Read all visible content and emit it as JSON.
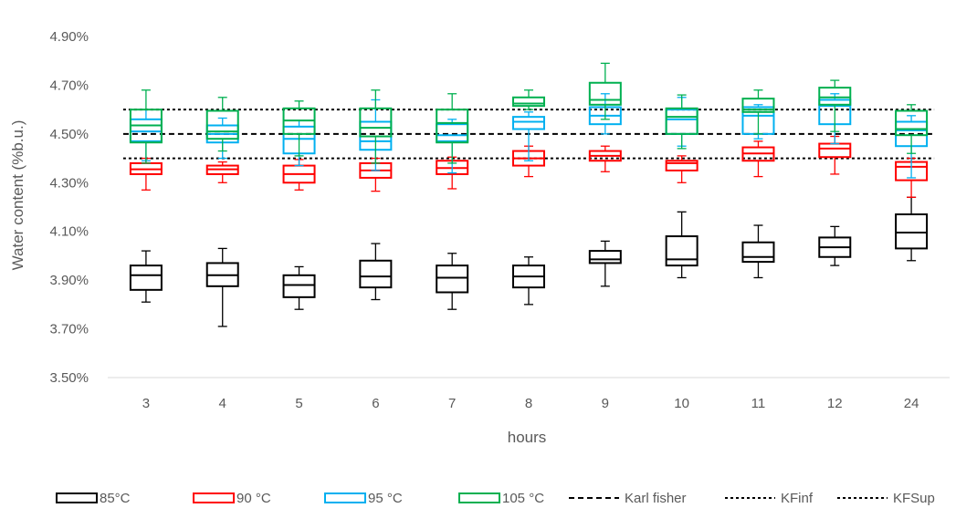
{
  "chart_data": {
    "type": "box",
    "xlabel": "hours",
    "ylabel": "Water content (%b.u.)",
    "ylim": [
      3.5,
      4.95
    ],
    "yticks": [
      "3.50%",
      "3.70%",
      "3.90%",
      "4.10%",
      "4.30%",
      "4.50%",
      "4.70%",
      "4.90%"
    ],
    "ytick_values": [
      3.5,
      3.7,
      3.9,
      4.1,
      4.3,
      4.5,
      4.7,
      4.9
    ],
    "categories": [
      "3",
      "4",
      "5",
      "6",
      "7",
      "8",
      "9",
      "10",
      "11",
      "12",
      "24"
    ],
    "grid": false,
    "legend_position": "bottom",
    "series": [
      {
        "name": "85°C",
        "color": "#000000",
        "boxes": [
          {
            "min": 3.81,
            "q1": 3.86,
            "median": 3.92,
            "q3": 3.96,
            "max": 4.02
          },
          {
            "min": 3.71,
            "q1": 3.875,
            "median": 3.92,
            "q3": 3.97,
            "max": 4.03
          },
          {
            "min": 3.78,
            "q1": 3.83,
            "median": 3.88,
            "q3": 3.92,
            "max": 3.955
          },
          {
            "min": 3.82,
            "q1": 3.87,
            "median": 3.915,
            "q3": 3.98,
            "max": 4.05
          },
          {
            "min": 3.78,
            "q1": 3.85,
            "median": 3.91,
            "q3": 3.96,
            "max": 4.01
          },
          {
            "min": 3.8,
            "q1": 3.87,
            "median": 3.915,
            "q3": 3.96,
            "max": 3.995
          },
          {
            "min": 3.875,
            "q1": 3.97,
            "median": 3.985,
            "q3": 4.02,
            "max": 4.06
          },
          {
            "min": 3.91,
            "q1": 3.96,
            "median": 3.985,
            "q3": 4.08,
            "max": 4.18
          },
          {
            "min": 3.91,
            "q1": 3.975,
            "median": 3.995,
            "q3": 4.055,
            "max": 4.125
          },
          {
            "min": 3.96,
            "q1": 3.995,
            "median": 4.035,
            "q3": 4.075,
            "max": 4.12
          },
          {
            "min": 3.98,
            "q1": 4.03,
            "median": 4.095,
            "q3": 4.17,
            "max": 4.24
          }
        ]
      },
      {
        "name": "90 °C",
        "color": "#ff0000",
        "boxes": [
          {
            "min": 4.27,
            "q1": 4.335,
            "median": 4.355,
            "q3": 4.38,
            "max": 4.4
          },
          {
            "min": 4.3,
            "q1": 4.335,
            "median": 4.355,
            "q3": 4.37,
            "max": 4.385
          },
          {
            "min": 4.27,
            "q1": 4.3,
            "median": 4.335,
            "q3": 4.37,
            "max": 4.395
          },
          {
            "min": 4.265,
            "q1": 4.32,
            "median": 4.35,
            "q3": 4.38,
            "max": 4.4
          },
          {
            "min": 4.275,
            "q1": 4.335,
            "median": 4.36,
            "q3": 4.39,
            "max": 4.405
          },
          {
            "min": 4.325,
            "q1": 4.37,
            "median": 4.4,
            "q3": 4.43,
            "max": 4.45
          },
          {
            "min": 4.345,
            "q1": 4.39,
            "median": 4.41,
            "q3": 4.43,
            "max": 4.45
          },
          {
            "min": 4.3,
            "q1": 4.35,
            "median": 4.38,
            "q3": 4.39,
            "max": 4.41
          },
          {
            "min": 4.325,
            "q1": 4.39,
            "median": 4.42,
            "q3": 4.445,
            "max": 4.47
          },
          {
            "min": 4.335,
            "q1": 4.405,
            "median": 4.44,
            "q3": 4.46,
            "max": 4.49
          },
          {
            "min": 4.24,
            "q1": 4.31,
            "median": 4.365,
            "q3": 4.385,
            "max": 4.4
          }
        ]
      },
      {
        "name": "95 °C",
        "color": "#00b0f0",
        "boxes": [
          {
            "min": 4.39,
            "q1": 4.47,
            "median": 4.51,
            "q3": 4.56,
            "max": 4.6
          },
          {
            "min": 4.4,
            "q1": 4.465,
            "median": 4.5,
            "q3": 4.535,
            "max": 4.565
          },
          {
            "min": 4.37,
            "q1": 4.42,
            "median": 4.48,
            "q3": 4.53,
            "max": 4.555
          },
          {
            "min": 4.35,
            "q1": 4.435,
            "median": 4.47,
            "q3": 4.55,
            "max": 4.64
          },
          {
            "min": 4.34,
            "q1": 4.47,
            "median": 4.495,
            "q3": 4.54,
            "max": 4.56
          },
          {
            "min": 4.39,
            "q1": 4.52,
            "median": 4.55,
            "q3": 4.57,
            "max": 4.59
          },
          {
            "min": 4.5,
            "q1": 4.54,
            "median": 4.575,
            "q3": 4.61,
            "max": 4.665
          },
          {
            "min": 4.45,
            "q1": 4.5,
            "median": 4.56,
            "q3": 4.6,
            "max": 4.65
          },
          {
            "min": 4.48,
            "q1": 4.5,
            "median": 4.575,
            "q3": 4.61,
            "max": 4.62
          },
          {
            "min": 4.46,
            "q1": 4.54,
            "median": 4.615,
            "q3": 4.64,
            "max": 4.665
          },
          {
            "min": 4.32,
            "q1": 4.45,
            "median": 4.515,
            "q3": 4.55,
            "max": 4.575
          }
        ]
      },
      {
        "name": "105 °C",
        "color": "#00b050",
        "boxes": [
          {
            "min": 4.38,
            "q1": 4.465,
            "median": 4.535,
            "q3": 4.6,
            "max": 4.68
          },
          {
            "min": 4.43,
            "q1": 4.48,
            "median": 4.51,
            "q3": 4.595,
            "max": 4.65
          },
          {
            "min": 4.41,
            "q1": 4.5,
            "median": 4.555,
            "q3": 4.605,
            "max": 4.635
          },
          {
            "min": 4.38,
            "q1": 4.49,
            "median": 4.525,
            "q3": 4.605,
            "max": 4.68
          },
          {
            "min": 4.38,
            "q1": 4.465,
            "median": 4.545,
            "q3": 4.6,
            "max": 4.665
          },
          {
            "min": 4.6,
            "q1": 4.615,
            "median": 4.625,
            "q3": 4.65,
            "max": 4.68
          },
          {
            "min": 4.56,
            "q1": 4.62,
            "median": 4.64,
            "q3": 4.71,
            "max": 4.79
          },
          {
            "min": 4.44,
            "q1": 4.5,
            "median": 4.57,
            "q3": 4.605,
            "max": 4.66
          },
          {
            "min": 4.5,
            "q1": 4.59,
            "median": 4.6,
            "q3": 4.645,
            "max": 4.68
          },
          {
            "min": 4.51,
            "q1": 4.62,
            "median": 4.65,
            "q3": 4.69,
            "max": 4.72
          },
          {
            "min": 4.42,
            "q1": 4.495,
            "median": 4.52,
            "q3": 4.595,
            "max": 4.62
          }
        ]
      }
    ],
    "reference_lines": [
      {
        "name": "Karl fisher",
        "value": 4.5,
        "color": "#000000",
        "style": "dashed"
      },
      {
        "name": "KFinf",
        "value": 4.4,
        "color": "#000000",
        "style": "dotted"
      },
      {
        "name": "KFSup",
        "value": 4.6,
        "color": "#000000",
        "style": "dotted"
      }
    ]
  }
}
